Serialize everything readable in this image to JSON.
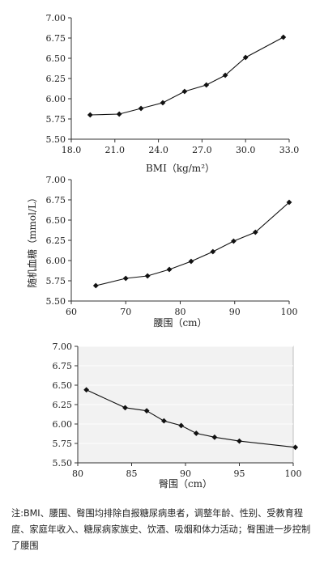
{
  "chart_data": [
    {
      "type": "line",
      "xlabel": "BMI（kg/m²）",
      "ylabel": "",
      "xlim": [
        18.0,
        33.0
      ],
      "ylim": [
        5.5,
        7.0
      ],
      "xticks": [
        "18.0",
        "21.0",
        "24.0",
        "27.0",
        "30.0",
        "33.0"
      ],
      "yticks": [
        "5.50",
        "5.75",
        "6.00",
        "6.25",
        "6.50",
        "6.75",
        "7.00"
      ],
      "grid": false,
      "series": [
        {
          "x": [
            19.3,
            21.3,
            22.8,
            24.3,
            25.8,
            27.3,
            28.6,
            30.0,
            32.6
          ],
          "y": [
            5.8,
            5.81,
            5.88,
            5.95,
            6.09,
            6.17,
            6.29,
            6.51,
            6.76
          ]
        }
      ]
    },
    {
      "type": "line",
      "xlabel": "腰围（cm）",
      "ylabel": "随机血糖（mmol/L）",
      "xlim": [
        60,
        100
      ],
      "ylim": [
        5.5,
        7.0
      ],
      "xticks": [
        "60",
        "70",
        "80",
        "90",
        "100"
      ],
      "yticks": [
        "5.50",
        "5.75",
        "6.00",
        "6.25",
        "6.50",
        "6.75",
        "7.00"
      ],
      "grid": false,
      "series": [
        {
          "x": [
            64.5,
            70.0,
            74.0,
            78.0,
            82.0,
            86.0,
            89.8,
            93.8,
            100.0
          ],
          "y": [
            5.69,
            5.78,
            5.81,
            5.89,
            5.99,
            6.11,
            6.24,
            6.35,
            6.72
          ]
        }
      ]
    },
    {
      "type": "line",
      "xlabel": "臀围（cm）",
      "ylabel": "",
      "xlim": [
        80,
        100
      ],
      "ylim": [
        5.5,
        7.0
      ],
      "xticks": [
        "80",
        "85",
        "90",
        "95",
        "100"
      ],
      "yticks": [
        "5.50",
        "5.75",
        "6.00",
        "6.25",
        "6.50",
        "6.75",
        "7.00"
      ],
      "grid": true,
      "series": [
        {
          "x": [
            80.8,
            84.4,
            86.4,
            88.0,
            89.6,
            91.0,
            92.7,
            95.0,
            100.2
          ],
          "y": [
            6.44,
            6.21,
            6.17,
            6.04,
            5.98,
            5.88,
            5.83,
            5.78,
            5.7
          ]
        }
      ]
    }
  ],
  "footnote": "注:BMI、腰围、臀围均排除自报糖尿病患者，调整年龄、性别、受教育程度、家庭年收入、糖尿病家族史、饮酒、吸烟和体力活动；臀围进一步控制了腰围"
}
